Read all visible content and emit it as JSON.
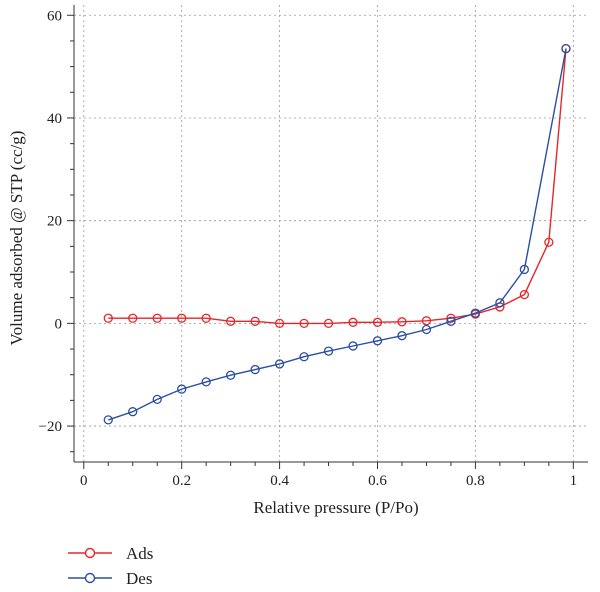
{
  "chart_data": {
    "type": "line",
    "title": "",
    "xlabel": "Relative pressure (P/Po)",
    "ylabel": "Volume adsorbed @ STP (cc/g)",
    "xlim": [
      -0.02,
      1.03
    ],
    "ylim": [
      -27,
      62
    ],
    "xticks": [
      0,
      0.2,
      0.4,
      0.6,
      0.8,
      1
    ],
    "xtick_labels": [
      "0",
      "0.2",
      "0.4",
      "0.6",
      "0.8",
      "1"
    ],
    "yticks": [
      -20,
      0,
      20,
      40,
      60
    ],
    "ytick_labels": [
      "−20",
      "0",
      "20",
      "40",
      "60"
    ],
    "grid": true,
    "legend_position": "bottom-left",
    "series": [
      {
        "name": "Ads",
        "color": "#e8262a",
        "x": [
          0.05,
          0.1,
          0.15,
          0.2,
          0.25,
          0.3,
          0.35,
          0.4,
          0.45,
          0.5,
          0.55,
          0.6,
          0.65,
          0.7,
          0.75,
          0.8,
          0.85,
          0.9,
          0.95,
          0.985
        ],
        "y": [
          1.0,
          1.0,
          1.0,
          1.0,
          1.0,
          0.4,
          0.4,
          0.0,
          0.0,
          0.0,
          0.2,
          0.2,
          0.3,
          0.5,
          1.0,
          1.8,
          3.2,
          5.6,
          15.8,
          53.5
        ]
      },
      {
        "name": "Des",
        "color": "#2b4fa3",
        "x": [
          0.05,
          0.1,
          0.15,
          0.2,
          0.25,
          0.3,
          0.35,
          0.4,
          0.45,
          0.5,
          0.55,
          0.6,
          0.65,
          0.7,
          0.75,
          0.8,
          0.85,
          0.9,
          0.985
        ],
        "y": [
          -18.8,
          -17.2,
          -14.8,
          -12.8,
          -11.4,
          -10.1,
          -9.0,
          -7.9,
          -6.5,
          -5.4,
          -4.4,
          -3.4,
          -2.4,
          -1.2,
          0.4,
          2.0,
          4.0,
          10.5,
          53.5
        ]
      }
    ]
  }
}
